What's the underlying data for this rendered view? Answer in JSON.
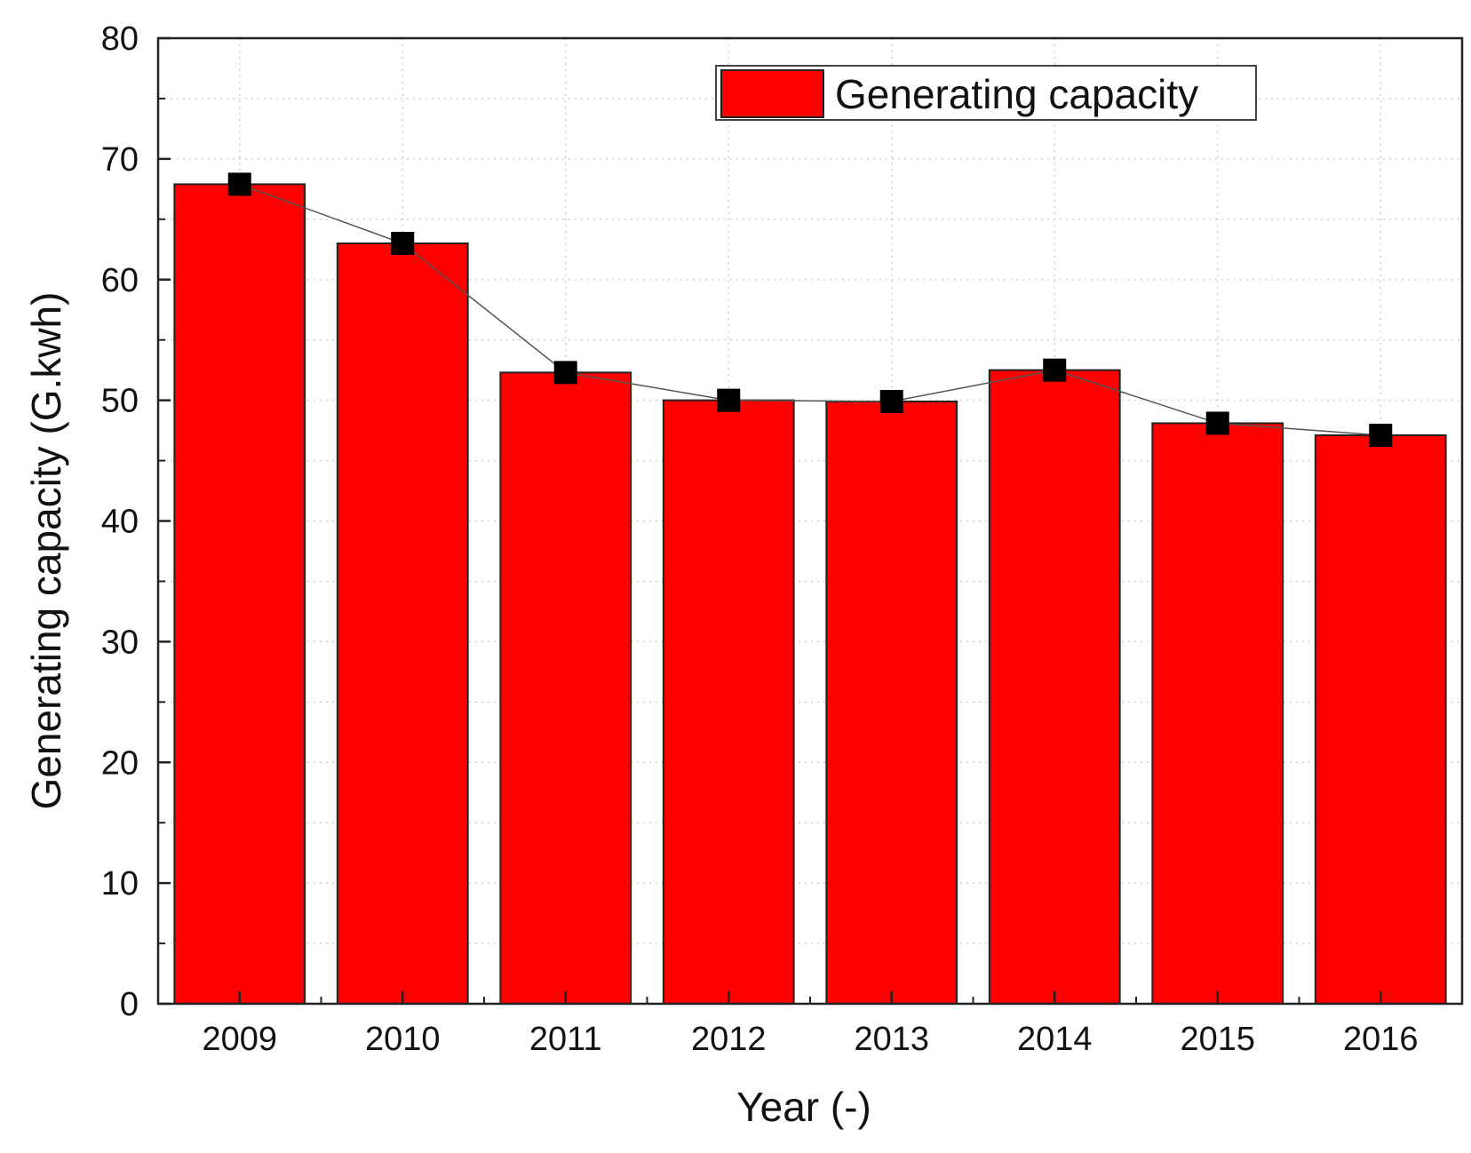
{
  "chart_data": {
    "type": "bar",
    "title": "",
    "xlabel": "Year (-)",
    "ylabel": "Generating capacity (G.kwh)",
    "categories": [
      "2009",
      "2010",
      "2011",
      "2012",
      "2013",
      "2014",
      "2015",
      "2016"
    ],
    "series": [
      {
        "name": "Generating capacity",
        "values": [
          67.9,
          63.0,
          52.3,
          50.0,
          49.9,
          52.5,
          48.1,
          47.1
        ],
        "color": "#ff0000"
      }
    ],
    "line_overlay": {
      "marker": "square",
      "marker_color": "#000000",
      "line_color": "#555555"
    },
    "ylim": [
      0,
      80
    ],
    "yticks": [
      "0",
      "10",
      "20",
      "30",
      "40",
      "50",
      "60",
      "70",
      "80"
    ],
    "grid": true,
    "legend": {
      "position": "top-right",
      "label": "Generating capacity"
    }
  }
}
